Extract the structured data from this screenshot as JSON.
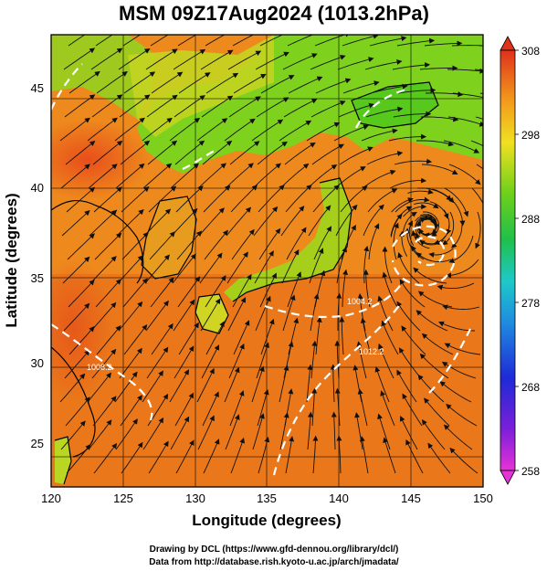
{
  "title": "MSM 09Z17Aug2024 (1013.2hPa)",
  "x_axis": {
    "label": "Longitude (degrees)",
    "ticks": [
      120,
      125,
      130,
      135,
      140,
      145,
      150
    ],
    "range": [
      120,
      150
    ]
  },
  "y_axis": {
    "label": "Latitude  (degrees)",
    "ticks": [
      25,
      30,
      35,
      40,
      45
    ],
    "range": [
      22.4,
      47.6
    ]
  },
  "colorbar": {
    "ticks": [
      258,
      268,
      278,
      288,
      298,
      308
    ],
    "range": [
      258,
      308
    ]
  },
  "isobar_labels": [
    "1004.2",
    "1012.2",
    "1008.2"
  ],
  "credits": [
    "Drawing by DCL (https://www.gfd-dennou.org/library/dcl/)",
    "Data from http://database.rish.kyoto-u.ac.jp/arch/jmadata/"
  ],
  "typhoon_center": {
    "lon": 146,
    "lat": 37
  },
  "colors": {
    "ocean_warm": "#e8711a",
    "ocean_mid": "#f09a1e",
    "land_cool": "#6fd21c",
    "land_warm": "#b8d61f",
    "stream": "#111111",
    "isobar": "#ffffff"
  }
}
